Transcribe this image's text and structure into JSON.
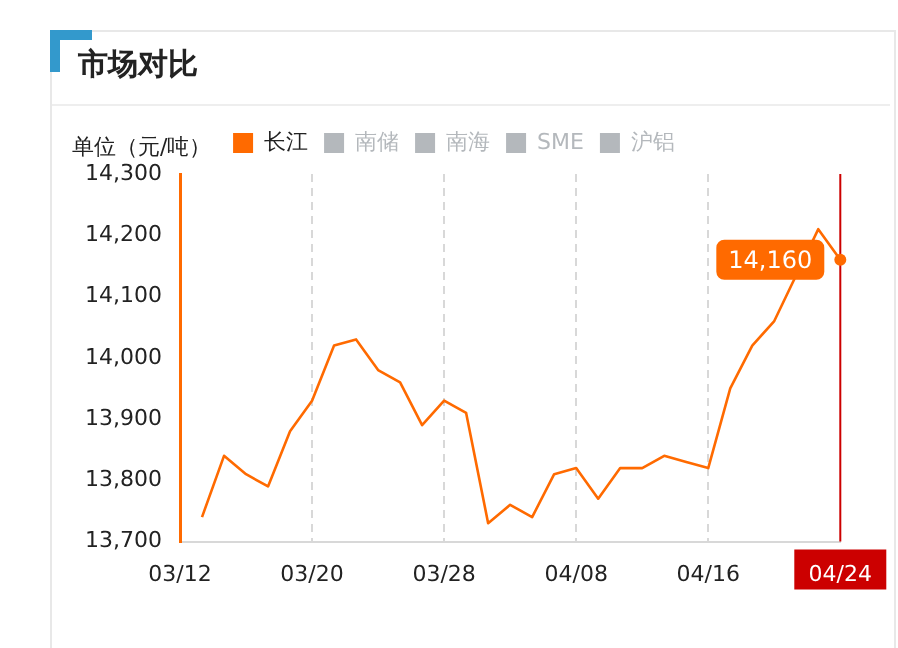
{
  "chart_data": {
    "type": "line",
    "title": "市场对比",
    "ylabel": "单位（元/吨）",
    "categories": [
      "03/12",
      null,
      null,
      null,
      null,
      null,
      "03/20",
      null,
      null,
      null,
      null,
      null,
      "03/28",
      null,
      null,
      null,
      null,
      null,
      "04/08",
      null,
      null,
      null,
      null,
      null,
      "04/16",
      null,
      null,
      null,
      null,
      null,
      "04/24"
    ],
    "series": [
      {
        "name": "长江",
        "color": "#ff6a00",
        "values": [
          null,
          13740,
          13840,
          13810,
          13790,
          13880,
          13930,
          14020,
          14030,
          13980,
          13960,
          13890,
          13930,
          13910,
          13730,
          13760,
          13740,
          13810,
          13820,
          13770,
          13820,
          13820,
          13840,
          13830,
          13820,
          13950,
          14020,
          14060,
          null,
          14210,
          14160
        ]
      },
      {
        "name": "南储",
        "color": "#b4b8bc",
        "values": [
          null,
          null,
          null,
          null,
          null,
          null,
          null,
          null,
          null,
          null,
          null,
          null,
          null,
          null,
          null,
          null,
          null,
          null,
          null,
          null,
          null,
          null,
          null,
          null,
          null,
          null,
          null,
          null,
          null,
          null,
          null
        ]
      },
      {
        "name": "南海",
        "color": "#b4b8bc",
        "values": [
          null,
          null,
          null,
          null,
          null,
          null,
          null,
          null,
          null,
          null,
          null,
          null,
          null,
          null,
          null,
          null,
          null,
          null,
          null,
          null,
          null,
          null,
          null,
          null,
          null,
          null,
          null,
          null,
          null,
          null,
          null
        ]
      },
      {
        "name": "SME",
        "color": "#b4b8bc",
        "values": [
          null,
          null,
          null,
          null,
          null,
          null,
          null,
          null,
          null,
          null,
          null,
          null,
          null,
          null,
          null,
          null,
          null,
          null,
          null,
          null,
          null,
          null,
          null,
          null,
          null,
          null,
          null,
          null,
          null,
          null,
          null
        ]
      },
      {
        "name": "沪铝",
        "color": "#b4b8bc",
        "values": [
          null,
          null,
          null,
          null,
          null,
          null,
          null,
          null,
          null,
          null,
          null,
          null,
          null,
          null,
          null,
          null,
          null,
          null,
          null,
          null,
          null,
          null,
          null,
          null,
          null,
          null,
          null,
          null,
          null,
          null,
          null
        ]
      }
    ],
    "ylim": [
      13700,
      14300
    ],
    "yticks": [
      {
        "value": 13700,
        "label": "13,700"
      },
      {
        "value": 13800,
        "label": "13,800"
      },
      {
        "value": 13900,
        "label": "13,900"
      },
      {
        "value": 14000,
        "label": "14,000"
      },
      {
        "value": 14100,
        "label": "14,100"
      },
      {
        "value": 14200,
        "label": "14,200"
      },
      {
        "value": 14300,
        "label": "14,300"
      }
    ],
    "grid": "x",
    "legend": "top",
    "marker": "none",
    "line_style": "solid",
    "ref_lines": [
      {
        "axis": "x",
        "value": "04/24",
        "color": "#cc0000"
      }
    ],
    "annotations": [
      {
        "text": "14,160",
        "x": "04/24",
        "y": 14160
      }
    ]
  }
}
